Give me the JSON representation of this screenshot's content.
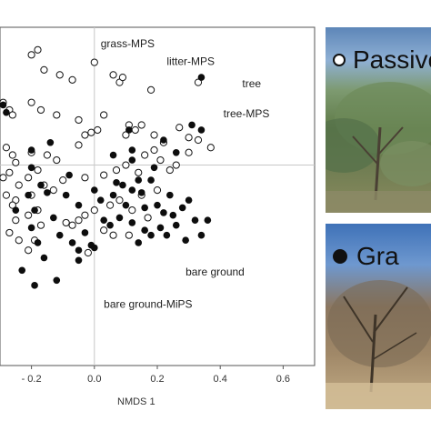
{
  "chart_data": {
    "type": "scatter",
    "xlabel": "NMDS 1",
    "ylabel": "",
    "xlim": [
      -0.3,
      0.7
    ],
    "ylim": [
      -0.8,
      0.55
    ],
    "x_ticks": [
      {
        "value": -0.2,
        "label": "- 0.2"
      },
      {
        "value": 0.0,
        "label": "0.0"
      },
      {
        "value": 0.2,
        "label": "0.2"
      },
      {
        "value": 0.4,
        "label": "0.4"
      },
      {
        "value": 0.6,
        "label": "0.6"
      }
    ],
    "zero_lines": true,
    "annotations": [
      {
        "text": "grass-MPS",
        "x": 0.02,
        "y": 0.47
      },
      {
        "text": "litter-MPS",
        "x": 0.23,
        "y": 0.4
      },
      {
        "text": "tree",
        "x": 0.47,
        "y": 0.31
      },
      {
        "text": "tree-MPS",
        "x": 0.41,
        "y": 0.19
      },
      {
        "text": "bare ground",
        "x": 0.29,
        "y": -0.44
      },
      {
        "text": "bare ground-MiPS",
        "x": 0.03,
        "y": -0.57
      }
    ],
    "series": [
      {
        "name": "Passive",
        "marker": "open-circle",
        "points": [
          [
            -0.18,
            0.46
          ],
          [
            -0.2,
            0.44
          ],
          [
            -0.16,
            0.38
          ],
          [
            -0.11,
            0.36
          ],
          [
            -0.07,
            0.34
          ],
          [
            0.06,
            0.36
          ],
          [
            0.08,
            0.33
          ],
          [
            0.09,
            0.35
          ],
          [
            0.18,
            0.3
          ],
          [
            0.33,
            0.33
          ],
          [
            0.0,
            0.41
          ],
          [
            -0.29,
            0.25
          ],
          [
            -0.27,
            0.22
          ],
          [
            -0.26,
            0.2
          ],
          [
            -0.2,
            0.25
          ],
          [
            -0.17,
            0.22
          ],
          [
            -0.12,
            0.2
          ],
          [
            -0.05,
            0.18
          ],
          [
            0.03,
            0.2
          ],
          [
            -0.03,
            0.12
          ],
          [
            -0.01,
            0.13
          ],
          [
            0.01,
            0.14
          ],
          [
            -0.05,
            0.08
          ],
          [
            0.1,
            0.12
          ],
          [
            0.11,
            0.16
          ],
          [
            0.13,
            0.14
          ],
          [
            0.15,
            0.16
          ],
          [
            0.19,
            0.12
          ],
          [
            0.27,
            0.15
          ],
          [
            0.3,
            0.11
          ],
          [
            0.33,
            0.1
          ],
          [
            0.37,
            0.07
          ],
          [
            -0.28,
            0.07
          ],
          [
            -0.26,
            0.04
          ],
          [
            -0.25,
            0.01
          ],
          [
            -0.2,
            0.05
          ],
          [
            -0.15,
            0.04
          ],
          [
            -0.12,
            0.02
          ],
          [
            -0.18,
            -0.02
          ],
          [
            -0.21,
            -0.05
          ],
          [
            -0.27,
            -0.03
          ],
          [
            -0.29,
            -0.05
          ],
          [
            -0.24,
            -0.08
          ],
          [
            -0.16,
            -0.08
          ],
          [
            -0.1,
            -0.06
          ],
          [
            -0.03,
            -0.05
          ],
          [
            0.03,
            -0.04
          ],
          [
            0.07,
            -0.02
          ],
          [
            0.1,
            0.0
          ],
          [
            0.14,
            -0.03
          ],
          [
            0.16,
            0.04
          ],
          [
            0.19,
            0.06
          ],
          [
            0.21,
            0.02
          ],
          [
            0.24,
            -0.02
          ],
          [
            0.26,
            0.0
          ],
          [
            0.22,
            0.09
          ],
          [
            0.3,
            0.05
          ],
          [
            -0.28,
            -0.12
          ],
          [
            -0.25,
            -0.14
          ],
          [
            -0.2,
            -0.12
          ],
          [
            -0.18,
            -0.18
          ],
          [
            -0.21,
            -0.2
          ],
          [
            -0.25,
            -0.22
          ],
          [
            -0.17,
            -0.24
          ],
          [
            -0.27,
            -0.27
          ],
          [
            -0.09,
            -0.23
          ],
          [
            -0.07,
            -0.24
          ],
          [
            -0.05,
            -0.22
          ],
          [
            -0.03,
            -0.2
          ],
          [
            0.0,
            -0.18
          ],
          [
            0.05,
            -0.16
          ],
          [
            0.08,
            -0.14
          ],
          [
            0.12,
            -0.18
          ],
          [
            0.15,
            -0.12
          ],
          [
            0.2,
            -0.1
          ],
          [
            0.03,
            -0.26
          ],
          [
            0.06,
            -0.28
          ],
          [
            0.11,
            -0.28
          ],
          [
            -0.21,
            -0.34
          ],
          [
            -0.19,
            -0.3
          ],
          [
            -0.02,
            -0.35
          ],
          [
            -0.26,
            -0.16
          ],
          [
            -0.24,
            -0.3
          ],
          [
            0.17,
            -0.21
          ],
          [
            -0.13,
            -0.1
          ]
        ]
      },
      {
        "name": "Grazed",
        "marker": "filled-circle",
        "points": [
          [
            0.34,
            0.35
          ],
          [
            -0.29,
            0.24
          ],
          [
            -0.28,
            0.21
          ],
          [
            0.31,
            0.16
          ],
          [
            0.34,
            0.14
          ],
          [
            0.12,
            0.06
          ],
          [
            0.12,
            0.02
          ],
          [
            0.19,
            -0.01
          ],
          [
            0.26,
            0.05
          ],
          [
            -0.2,
            -0.01
          ],
          [
            -0.2,
            0.06
          ],
          [
            -0.17,
            -0.08
          ],
          [
            -0.15,
            -0.11
          ],
          [
            -0.08,
            -0.04
          ],
          [
            -0.09,
            -0.12
          ],
          [
            -0.05,
            -0.16
          ],
          [
            0.0,
            -0.1
          ],
          [
            0.02,
            -0.14
          ],
          [
            0.06,
            -0.12
          ],
          [
            0.07,
            -0.07
          ],
          [
            0.09,
            -0.08
          ],
          [
            0.1,
            -0.16
          ],
          [
            0.12,
            -0.1
          ],
          [
            0.14,
            -0.06
          ],
          [
            0.15,
            -0.11
          ],
          [
            0.16,
            -0.17
          ],
          [
            0.18,
            -0.06
          ],
          [
            0.2,
            -0.16
          ],
          [
            0.22,
            -0.19
          ],
          [
            0.24,
            -0.12
          ],
          [
            0.25,
            -0.2
          ],
          [
            0.28,
            -0.17
          ],
          [
            0.3,
            -0.14
          ],
          [
            0.32,
            -0.22
          ],
          [
            0.36,
            -0.22
          ],
          [
            -0.21,
            -0.12
          ],
          [
            -0.19,
            -0.18
          ],
          [
            -0.2,
            -0.25
          ],
          [
            -0.18,
            -0.31
          ],
          [
            -0.13,
            -0.21
          ],
          [
            -0.11,
            -0.28
          ],
          [
            -0.07,
            -0.31
          ],
          [
            -0.05,
            -0.34
          ],
          [
            -0.03,
            -0.27
          ],
          [
            -0.01,
            -0.32
          ],
          [
            0.03,
            -0.22
          ],
          [
            0.05,
            -0.24
          ],
          [
            0.08,
            -0.21
          ],
          [
            0.12,
            -0.23
          ],
          [
            0.14,
            -0.31
          ],
          [
            0.16,
            -0.26
          ],
          [
            0.18,
            -0.28
          ],
          [
            0.21,
            -0.25
          ],
          [
            0.23,
            -0.28
          ],
          [
            0.26,
            -0.24
          ],
          [
            0.29,
            -0.3
          ],
          [
            0.34,
            -0.28
          ],
          [
            -0.23,
            -0.42
          ],
          [
            -0.19,
            -0.48
          ],
          [
            -0.16,
            -0.37
          ],
          [
            -0.12,
            -0.46
          ],
          [
            -0.05,
            -0.38
          ],
          [
            0.0,
            -0.33
          ],
          [
            -0.25,
            -0.18
          ],
          [
            0.11,
            0.14
          ],
          [
            -0.14,
            0.09
          ],
          [
            0.22,
            0.1
          ],
          [
            0.06,
            0.04
          ]
        ]
      }
    ]
  },
  "photos": [
    {
      "legend_label": "Passive",
      "marker": "open-circle"
    },
    {
      "legend_label": "Gra",
      "marker": "filled-circle"
    }
  ]
}
